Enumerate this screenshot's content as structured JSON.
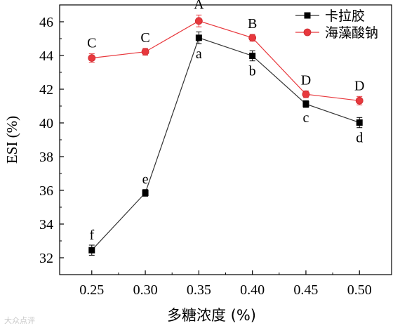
{
  "chart_data": {
    "type": "line",
    "xlabel": "多糖浓度 (%)",
    "ylabel": "ESI (%)",
    "x": [
      0.25,
      0.3,
      0.35,
      0.4,
      0.45,
      0.5
    ],
    "x_tick_labels": [
      "0.25",
      "0.30",
      "0.35",
      "0.40",
      "0.45",
      "0.50"
    ],
    "xlim": [
      0.22,
      0.53
    ],
    "ylim": [
      31,
      47
    ],
    "y_ticks": [
      32,
      34,
      36,
      38,
      40,
      42,
      44,
      46
    ],
    "y_tick_labels": [
      "32",
      "34",
      "36",
      "38",
      "40",
      "42",
      "44",
      "46"
    ],
    "grid": false,
    "legend_position": "top-right",
    "series": [
      {
        "name": "卡拉胶",
        "color": "#000000",
        "marker": "square",
        "values": [
          32.45,
          35.85,
          45.05,
          43.98,
          41.12,
          40.02
        ],
        "errors": [
          0.3,
          0.2,
          0.35,
          0.3,
          0.2,
          0.3
        ],
        "letters": [
          "f",
          "e",
          "a",
          "b",
          "c",
          "d"
        ]
      },
      {
        "name": "海藻酸钠",
        "color": "#e8383d",
        "marker": "circle",
        "values": [
          43.85,
          44.22,
          46.05,
          45.05,
          41.7,
          41.32
        ],
        "errors": [
          0.25,
          0.2,
          0.35,
          0.2,
          0.2,
          0.25
        ],
        "letters": [
          "C",
          "C",
          "A",
          "B",
          "D",
          "D"
        ]
      }
    ]
  },
  "watermark": "大众点评"
}
